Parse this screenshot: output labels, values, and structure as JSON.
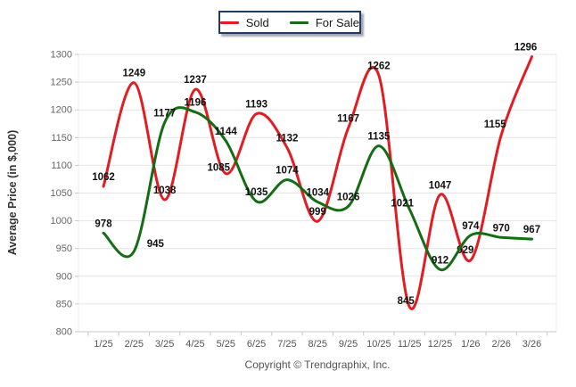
{
  "legend": {
    "items": [
      {
        "label": "Sold",
        "color": "#e11c23"
      },
      {
        "label": "For Sale",
        "color": "#146d14"
      }
    ]
  },
  "footer": {
    "copyright": "Copyright © Trendgraphix, Inc."
  },
  "chart_data": {
    "type": "line",
    "title": "",
    "xlabel": "",
    "ylabel": "Average Price (in $,000)",
    "categories": [
      "1/25",
      "2/25",
      "3/25",
      "4/25",
      "5/25",
      "6/25",
      "7/25",
      "8/25",
      "9/25",
      "10/25",
      "11/25",
      "12/25",
      "1/26",
      "2/26",
      "3/26"
    ],
    "series": [
      {
        "name": "Sold",
        "color": "#e11c23",
        "values": [
          1062,
          1249,
          1038,
          1237,
          1085,
          1193,
          1132,
          999,
          1167,
          1262,
          845,
          1047,
          929,
          1155,
          1296
        ]
      },
      {
        "name": "For Sale",
        "color": "#146d14",
        "values": [
          978,
          945,
          1177,
          1196,
          1144,
          1035,
          1074,
          1034,
          1026,
          1135,
          1021,
          912,
          974,
          970,
          967
        ]
      }
    ],
    "ylim": [
      800,
      1300
    ],
    "yticks": [
      800,
      850,
      900,
      950,
      1000,
      1050,
      1100,
      1150,
      1200,
      1250,
      1300
    ],
    "grid": true,
    "smoothing": "spline",
    "point_labels": true,
    "legend_position": "top-center"
  },
  "colors": {
    "gridline": "#e4e4e4",
    "axis_line": "#c8c8c8",
    "tick_text": "#666666",
    "data_label": "#111111",
    "legend_border": "#233a60"
  }
}
